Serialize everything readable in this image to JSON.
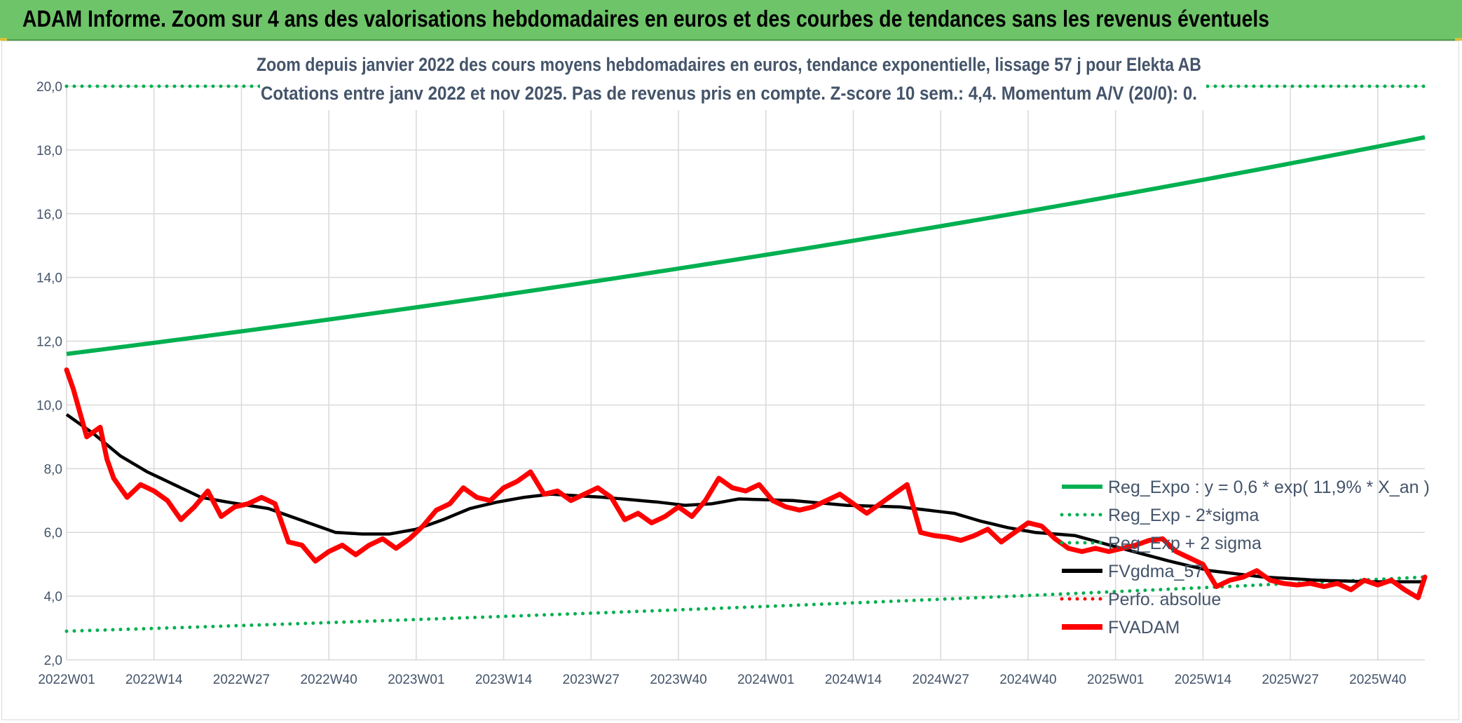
{
  "header": {
    "title": "ADAM Informe. Zoom sur 4 ans des valorisations hebdomadaires en euros et des courbes de tendances sans les revenus éventuels"
  },
  "colors": {
    "header_bg": "#6ec469",
    "reg_expo": "#00b050",
    "fvgdma": "#000000",
    "fvadam": "#ff0000",
    "perfo": "#ff0000",
    "axis_text": "#44546a"
  },
  "chart_data": {
    "type": "line",
    "title_lines": [
      "Zoom depuis janvier 2022 des cours moyens hebdomadaires en euros, tendance exponentielle, lissage 57 j pour Elekta AB",
      "Cotations entre janv 2022 et nov 2025. Pas de revenus pris en compte. Z-score 10 sem.: 4,4. Momentum A/V (20/0): 0."
    ],
    "ylim": [
      2,
      20
    ],
    "y_ticks": [
      2,
      4,
      6,
      8,
      10,
      12,
      14,
      16,
      18,
      20
    ],
    "y_tick_labels": [
      "2,0",
      "4,0",
      "6,0",
      "8,0",
      "10,0",
      "12,0",
      "14,0",
      "16,0",
      "18,0",
      "20,0"
    ],
    "n_weeks": 203,
    "x_tick_indices": [
      0,
      13,
      26,
      39,
      52,
      65,
      78,
      91,
      104,
      117,
      130,
      143,
      156,
      169,
      182,
      195
    ],
    "x_tick_labels": [
      "2022W01",
      "2022W14",
      "2022W27",
      "2022W40",
      "2023W01",
      "2023W14",
      "2023W27",
      "2023W40",
      "2024W01",
      "2024W14",
      "2024W27",
      "2024W40",
      "2025W01",
      "2025W14",
      "2025W27",
      "2025W40"
    ],
    "reg_expo": {
      "start": 11.6,
      "end": 18.4
    },
    "reg_exp_minus_2sigma": {
      "start": 2.9,
      "end": 4.6
    },
    "reg_exp_plus_2sigma": {
      "value": 20.0
    },
    "fvgdma_keypoints": [
      [
        0,
        9.7
      ],
      [
        4,
        9.1
      ],
      [
        8,
        8.4
      ],
      [
        12,
        7.9
      ],
      [
        16,
        7.5
      ],
      [
        20,
        7.1
      ],
      [
        24,
        6.95
      ],
      [
        30,
        6.75
      ],
      [
        36,
        6.3
      ],
      [
        40,
        6.0
      ],
      [
        44,
        5.95
      ],
      [
        48,
        5.95
      ],
      [
        52,
        6.1
      ],
      [
        56,
        6.4
      ],
      [
        60,
        6.75
      ],
      [
        64,
        6.95
      ],
      [
        68,
        7.1
      ],
      [
        72,
        7.2
      ],
      [
        80,
        7.1
      ],
      [
        88,
        6.95
      ],
      [
        92,
        6.85
      ],
      [
        96,
        6.9
      ],
      [
        100,
        7.05
      ],
      [
        108,
        7.0
      ],
      [
        116,
        6.85
      ],
      [
        124,
        6.8
      ],
      [
        128,
        6.7
      ],
      [
        132,
        6.6
      ],
      [
        136,
        6.35
      ],
      [
        140,
        6.15
      ],
      [
        144,
        6.0
      ],
      [
        150,
        5.9
      ],
      [
        156,
        5.55
      ],
      [
        164,
        5.1
      ],
      [
        170,
        4.8
      ],
      [
        178,
        4.6
      ],
      [
        186,
        4.5
      ],
      [
        194,
        4.45
      ],
      [
        202,
        4.45
      ]
    ],
    "fvadam_keypoints": [
      [
        0,
        11.1
      ],
      [
        1,
        10.5
      ],
      [
        3,
        9.0
      ],
      [
        5,
        9.3
      ],
      [
        6,
        8.3
      ],
      [
        7,
        7.7
      ],
      [
        9,
        7.1
      ],
      [
        11,
        7.5
      ],
      [
        13,
        7.3
      ],
      [
        15,
        7.0
      ],
      [
        17,
        6.4
      ],
      [
        19,
        6.8
      ],
      [
        21,
        7.3
      ],
      [
        23,
        6.5
      ],
      [
        25,
        6.8
      ],
      [
        27,
        6.9
      ],
      [
        29,
        7.1
      ],
      [
        31,
        6.9
      ],
      [
        33,
        5.7
      ],
      [
        35,
        5.6
      ],
      [
        37,
        5.1
      ],
      [
        39,
        5.4
      ],
      [
        41,
        5.6
      ],
      [
        43,
        5.3
      ],
      [
        45,
        5.6
      ],
      [
        47,
        5.8
      ],
      [
        49,
        5.5
      ],
      [
        51,
        5.8
      ],
      [
        53,
        6.2
      ],
      [
        55,
        6.7
      ],
      [
        57,
        6.9
      ],
      [
        59,
        7.4
      ],
      [
        61,
        7.1
      ],
      [
        63,
        7.0
      ],
      [
        65,
        7.4
      ],
      [
        67,
        7.6
      ],
      [
        69,
        7.9
      ],
      [
        71,
        7.2
      ],
      [
        73,
        7.3
      ],
      [
        75,
        7.0
      ],
      [
        77,
        7.2
      ],
      [
        79,
        7.4
      ],
      [
        81,
        7.1
      ],
      [
        83,
        6.4
      ],
      [
        85,
        6.6
      ],
      [
        87,
        6.3
      ],
      [
        89,
        6.5
      ],
      [
        91,
        6.8
      ],
      [
        93,
        6.5
      ],
      [
        95,
        7.0
      ],
      [
        97,
        7.7
      ],
      [
        99,
        7.4
      ],
      [
        101,
        7.3
      ],
      [
        103,
        7.5
      ],
      [
        105,
        7.0
      ],
      [
        107,
        6.8
      ],
      [
        109,
        6.7
      ],
      [
        111,
        6.8
      ],
      [
        113,
        7.0
      ],
      [
        115,
        7.2
      ],
      [
        117,
        6.9
      ],
      [
        119,
        6.6
      ],
      [
        121,
        6.9
      ],
      [
        123,
        7.2
      ],
      [
        125,
        7.5
      ],
      [
        127,
        6.0
      ],
      [
        129,
        5.9
      ],
      [
        131,
        5.85
      ],
      [
        133,
        5.75
      ],
      [
        135,
        5.9
      ],
      [
        137,
        6.1
      ],
      [
        139,
        5.7
      ],
      [
        141,
        6.0
      ],
      [
        143,
        6.3
      ],
      [
        145,
        6.2
      ],
      [
        147,
        5.8
      ],
      [
        149,
        5.5
      ],
      [
        151,
        5.4
      ],
      [
        153,
        5.5
      ],
      [
        155,
        5.4
      ],
      [
        157,
        5.5
      ],
      [
        159,
        5.6
      ],
      [
        161,
        5.75
      ],
      [
        163,
        5.8
      ],
      [
        165,
        5.4
      ],
      [
        167,
        5.2
      ],
      [
        169,
        5.0
      ],
      [
        171,
        4.3
      ],
      [
        173,
        4.5
      ],
      [
        175,
        4.6
      ],
      [
        177,
        4.8
      ],
      [
        179,
        4.5
      ],
      [
        181,
        4.4
      ],
      [
        183,
        4.35
      ],
      [
        185,
        4.4
      ],
      [
        187,
        4.3
      ],
      [
        189,
        4.4
      ],
      [
        191,
        4.2
      ],
      [
        193,
        4.5
      ],
      [
        195,
        4.35
      ],
      [
        197,
        4.5
      ],
      [
        199,
        4.2
      ],
      [
        201,
        3.95
      ],
      [
        202,
        4.6
      ]
    ],
    "legend": [
      {
        "label": "Reg_Expo : y = 0,6 * exp( 11,9% *  X_an )",
        "style": "solid",
        "color": "#00b050"
      },
      {
        "label": "Reg_Exp - 2*sigma",
        "style": "dotted",
        "color": "#00b050"
      },
      {
        "label": "Reg_Exp + 2 sigma",
        "style": "dotted",
        "color": "#00b050"
      },
      {
        "label": "FVgdma_57",
        "style": "solid",
        "color": "#000000"
      },
      {
        "label": "Perfo. absolue",
        "style": "dotted",
        "color": "#ff0000"
      },
      {
        "label": "FVADAM",
        "style": "thick",
        "color": "#ff0000"
      }
    ],
    "legend_position": "bottom-right"
  }
}
